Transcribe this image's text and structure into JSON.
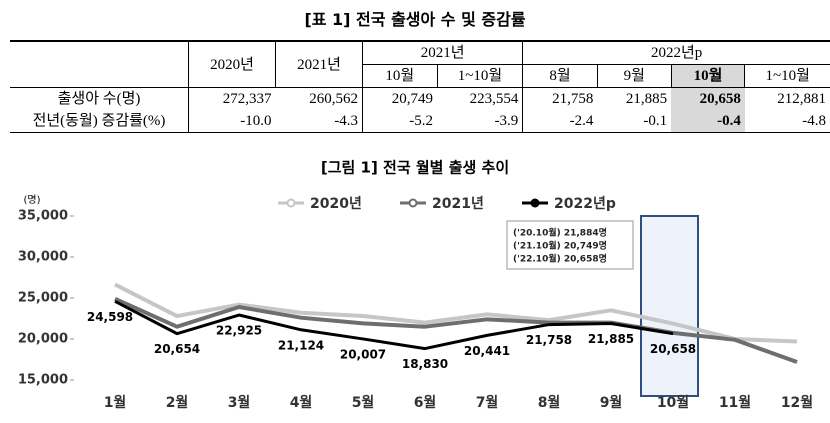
{
  "table": {
    "title": "[표 1] 전국 출생아 수 및 증감률",
    "header_top": [
      "2020년",
      "2021년",
      "2021년",
      "2022년p"
    ],
    "header_sub": [
      "10월",
      "1~10월",
      "8월",
      "9월",
      "10월",
      "1~10월"
    ],
    "rows": [
      [
        "출생아 수(명)",
        "272,337",
        "260,562",
        "20,749",
        "223,554",
        "21,758",
        "21,885",
        "20,658",
        "212,881"
      ],
      [
        "전년(동월) 증감률(%)",
        "-10.0",
        "-4.3",
        "-5.2",
        "-3.9",
        "-2.4",
        "-0.1",
        "-0.4",
        "-4.8"
      ]
    ]
  },
  "chart_data": {
    "type": "line",
    "title": "[그림 1] 전국 월별 출생 추이",
    "y_label": "(명)",
    "categories": [
      "1월",
      "2월",
      "3월",
      "4월",
      "5월",
      "6월",
      "7월",
      "8월",
      "9월",
      "10월",
      "11월",
      "12월"
    ],
    "series": [
      {
        "name": "2020년",
        "color": "#c6c6c6",
        "values": [
          26650,
          22800,
          24200,
          23200,
          22800,
          22000,
          23000,
          22300,
          23500,
          21884,
          20000,
          19700
        ]
      },
      {
        "name": "2021년",
        "color": "#6e6e6e",
        "values": [
          24900,
          21500,
          23900,
          22600,
          21900,
          21500,
          22400,
          22000,
          22000,
          20749,
          19900,
          17200
        ]
      },
      {
        "name": "2022년p",
        "color": "#000000",
        "values": [
          24598,
          20654,
          22925,
          21124,
          20007,
          18830,
          20441,
          21758,
          21885,
          20658,
          null,
          null
        ],
        "value_labels": [
          "24,598",
          "20,654",
          "22,925",
          "21,124",
          "20,007",
          "18,830",
          "20,441",
          "21,758",
          "21,885",
          "20,658",
          null,
          null
        ]
      }
    ],
    "annotations": [
      "('20.10월)  21,884명",
      "('21.10월)  20,749명",
      "('22.10월)  20,658명"
    ],
    "ylim": [
      15000,
      35000
    ],
    "yticks": [
      {
        "value": 15000,
        "label": "15,000"
      },
      {
        "value": 20000,
        "label": "20,000"
      },
      {
        "value": 25000,
        "label": "25,000"
      },
      {
        "value": 30000,
        "label": "30,000"
      },
      {
        "value": 35000,
        "label": "35,000"
      }
    ],
    "grid": false,
    "legend": "top"
  }
}
